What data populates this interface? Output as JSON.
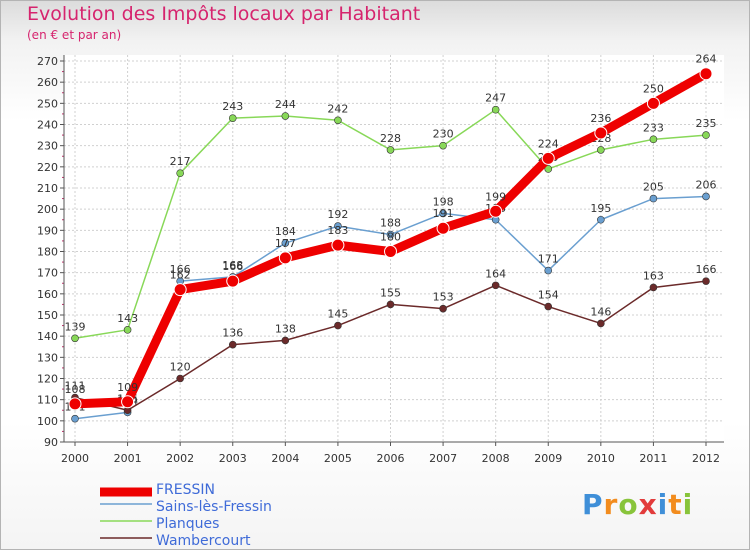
{
  "chart_data": {
    "type": "line",
    "title": "Evolution des Impôts locaux par Habitant",
    "subtitle": "(en € et par an)",
    "x": [
      "2000",
      "2001",
      "2002",
      "2003",
      "2004",
      "2005",
      "2006",
      "2007",
      "2008",
      "2009",
      "2010",
      "2011",
      "2012"
    ],
    "ylim": [
      90,
      270
    ],
    "yticks": [
      90,
      100,
      110,
      120,
      130,
      140,
      150,
      160,
      170,
      180,
      190,
      200,
      210,
      220,
      230,
      240,
      250,
      260,
      270
    ],
    "series": [
      {
        "name": "FRESSIN",
        "color": "#ee0000",
        "values": [
          108,
          109,
          162,
          166,
          177,
          183,
          180,
          191,
          199,
          224,
          236,
          250,
          264
        ]
      },
      {
        "name": "Sains-lès-Fressin",
        "color": "#6a9fd0",
        "values": [
          101,
          104,
          166,
          168,
          184,
          192,
          188,
          198,
          195,
          171,
          195,
          205,
          206
        ]
      },
      {
        "name": "Planques",
        "color": "#88d858",
        "values": [
          139,
          143,
          217,
          243,
          244,
          242,
          228,
          230,
          247,
          219,
          228,
          233,
          235
        ]
      },
      {
        "name": "Wambercourt",
        "color": "#6b2a2a",
        "values": [
          111,
          105,
          120,
          136,
          138,
          145,
          155,
          153,
          164,
          154,
          146,
          163,
          166
        ]
      }
    ]
  },
  "logo": {
    "letters": [
      "P",
      "r",
      "o",
      "x",
      "i",
      "t",
      "i"
    ],
    "colors": [
      "#3f8fd8",
      "#f28c1e",
      "#88c43a",
      "#e23b3b",
      "#3f8fd8",
      "#f28c1e",
      "#88c43a"
    ]
  }
}
